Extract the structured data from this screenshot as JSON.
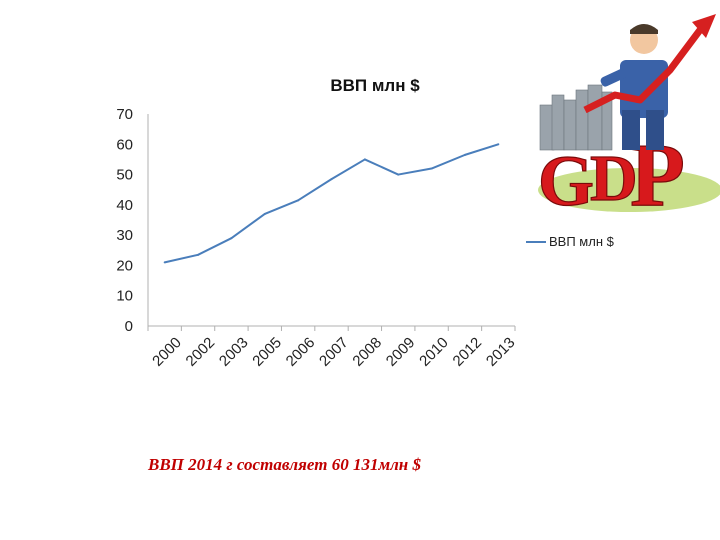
{
  "caption": "ВВП 2014 г  составляет  60 131млн $",
  "colors": {
    "series": "#4a7ebb",
    "caption": "#c00000",
    "gdp_letters": "#d7191c",
    "figure_suit": "#3a62a8",
    "arrow": "#d62020"
  },
  "illustration": {
    "icon": "gdp-businessman-illustration",
    "letters": "GDP"
  },
  "chart_data": {
    "type": "line",
    "title": "ВВП млн $",
    "xlabel": "",
    "ylabel": "",
    "categories": [
      "2000",
      "2002",
      "2003",
      "2005",
      "2006",
      "2007",
      "2008",
      "2009",
      "2010",
      "2012",
      "2013"
    ],
    "series": [
      {
        "name": "ВВП млн $",
        "values": [
          21,
          23.5,
          29,
          37,
          41.5,
          48.5,
          55,
          50,
          52,
          56.5,
          60
        ]
      }
    ],
    "ylim": [
      0,
      70
    ],
    "yticks": [
      0,
      10,
      20,
      30,
      40,
      50,
      60,
      70
    ],
    "grid": false,
    "legend": "right"
  }
}
